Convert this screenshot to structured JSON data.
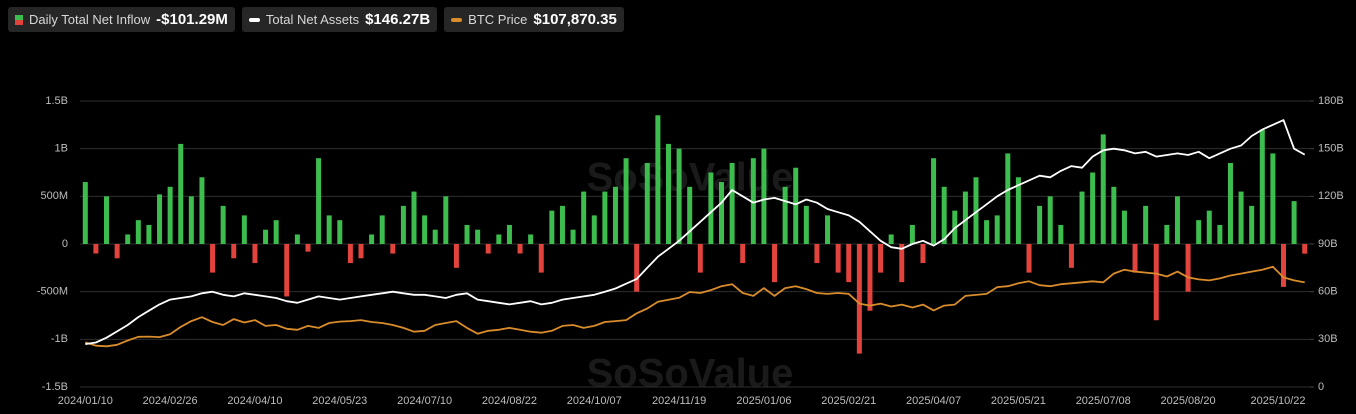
{
  "chart_data": {
    "type": "combo",
    "watermark": "SoSoValue",
    "categories": [
      "2024/01/10",
      null,
      null,
      null,
      null,
      null,
      null,
      null,
      "2024/02/26",
      null,
      null,
      null,
      null,
      null,
      null,
      null,
      "2024/04/10",
      null,
      null,
      null,
      null,
      null,
      null,
      null,
      "2024/05/23",
      null,
      null,
      null,
      null,
      null,
      null,
      null,
      "2024/07/10",
      null,
      null,
      null,
      null,
      null,
      null,
      null,
      "2024/08/22",
      null,
      null,
      null,
      null,
      null,
      null,
      null,
      "2024/10/07",
      null,
      null,
      null,
      null,
      null,
      null,
      null,
      "2024/11/19",
      null,
      null,
      null,
      null,
      null,
      null,
      null,
      "2025/01/06",
      null,
      null,
      null,
      null,
      null,
      null,
      null,
      "2025/02/21",
      null,
      null,
      null,
      null,
      null,
      null,
      null,
      "2025/04/07",
      null,
      null,
      null,
      null,
      null,
      null,
      null,
      "2025/05/21",
      null,
      null,
      null,
      null,
      null,
      null,
      null,
      "2025/07/08",
      null,
      null,
      null,
      null,
      null,
      null,
      null,
      "2025/08/20",
      null,
      null,
      null,
      null,
      null,
      null,
      null,
      null,
      null,
      null,
      "2025/10/22"
    ],
    "series": [
      {
        "name": "Daily Total Net Inflow",
        "type": "bar",
        "axis": "y",
        "color": "#3dbd4d",
        "negative_color": "#e2433d",
        "value_label": "-$101.29M",
        "values": [
          650,
          -100,
          500,
          -150,
          100,
          250,
          200,
          520,
          600,
          1050,
          500,
          700,
          -300,
          400,
          -150,
          300,
          -200,
          150,
          250,
          -550,
          100,
          -80,
          900,
          300,
          250,
          -200,
          -150,
          100,
          300,
          -100,
          400,
          550,
          300,
          150,
          500,
          -250,
          200,
          150,
          -100,
          100,
          200,
          -100,
          100,
          -300,
          350,
          400,
          150,
          550,
          300,
          550,
          600,
          900,
          -500,
          850,
          1350,
          1050,
          1000,
          600,
          -300,
          750,
          650,
          850,
          -200,
          900,
          1000,
          -400,
          600,
          800,
          400,
          -200,
          300,
          -300,
          -400,
          -1150,
          -700,
          -300,
          100,
          -400,
          200,
          -200,
          900,
          600,
          350,
          550,
          700,
          250,
          300,
          950,
          700,
          -300,
          400,
          500,
          200,
          -250,
          550,
          750,
          1150,
          600,
          350,
          -300,
          400,
          -800,
          200,
          500,
          -500,
          250,
          350,
          200,
          850,
          550,
          400,
          1200,
          950,
          -450,
          450,
          -101.29
        ]
      },
      {
        "name": "Total Net Assets",
        "type": "line",
        "axis": "y2",
        "color": "#ffffff",
        "value_label": "$146.27B",
        "values": [
          27,
          28,
          31,
          35,
          39,
          44,
          48,
          52,
          55,
          56,
          57,
          59,
          60,
          58,
          57,
          59,
          58,
          57,
          56,
          54,
          53,
          55,
          57,
          56,
          55,
          56,
          57,
          58,
          59,
          60,
          59,
          58,
          58,
          57,
          56,
          58,
          59,
          55,
          54,
          53,
          52,
          53,
          54,
          52,
          53,
          55,
          56,
          57,
          58,
          60,
          62,
          65,
          68,
          75,
          82,
          87,
          92,
          98,
          104,
          110,
          116,
          124,
          120,
          116,
          118,
          119,
          117,
          115,
          118,
          116,
          112,
          110,
          108,
          104,
          98,
          92,
          88,
          87,
          90,
          92,
          89,
          93,
          100,
          105,
          110,
          115,
          120,
          124,
          127,
          130,
          133,
          132,
          136,
          139,
          138,
          145,
          149,
          150,
          149,
          147,
          148,
          145,
          146,
          147,
          146,
          148,
          144,
          147,
          150,
          152,
          158,
          162,
          165,
          168,
          150,
          146.27
        ]
      },
      {
        "name": "BTC Price",
        "type": "line",
        "axis": "y3",
        "color": "#d98c2b",
        "value_label": "$107,870.35",
        "values": [
          46000,
          42600,
          42000,
          43500,
          48000,
          51800,
          52000,
          51500,
          54500,
          62000,
          68000,
          72000,
          67000,
          64000,
          70000,
          66500,
          69000,
          63000,
          64000,
          60000,
          59000,
          63000,
          61000,
          66000,
          67500,
          68000,
          69000,
          67000,
          66000,
          64000,
          61000,
          57000,
          58000,
          64000,
          66000,
          68000,
          61000,
          55000,
          58000,
          59000,
          61000,
          59000,
          57000,
          56000,
          58000,
          63000,
          64000,
          61000,
          63000,
          67000,
          68000,
          69000,
          76000,
          81000,
          88000,
          90000,
          92000,
          98000,
          97000,
          100000,
          104000,
          106000,
          97000,
          94000,
          102000,
          94000,
          102000,
          104000,
          101000,
          97000,
          96000,
          97000,
          96000,
          86000,
          84000,
          86000,
          83000,
          85000,
          82000,
          85000,
          79000,
          84000,
          85000,
          94000,
          95000,
          96000,
          103000,
          104000,
          107000,
          109000,
          105000,
          104000,
          106000,
          107000,
          108000,
          109000,
          108000,
          117000,
          121000,
          119000,
          118000,
          117000,
          114000,
          119000,
          113000,
          111000,
          110000,
          112000,
          115000,
          117000,
          119000,
          121000,
          124000,
          113000,
          110000,
          107870.35
        ]
      }
    ],
    "ylim": [
      -1500,
      1500
    ],
    "yticks": [
      {
        "value": -1500,
        "label": "-1.5B"
      },
      {
        "value": -1000,
        "label": "-1B"
      },
      {
        "value": -500,
        "label": "-500M"
      },
      0,
      {
        "value": 500,
        "label": "500M"
      },
      {
        "value": 1000,
        "label": "1B"
      },
      {
        "value": 1500,
        "label": "1.5B"
      }
    ],
    "y2lim": [
      0,
      180
    ],
    "y2ticks": [
      0,
      {
        "value": 30,
        "label": "30B"
      },
      {
        "value": 60,
        "label": "60B"
      },
      {
        "value": 90,
        "label": "90B"
      },
      {
        "value": 120,
        "label": "120B"
      },
      {
        "value": 150,
        "label": "150B"
      },
      {
        "value": 180,
        "label": "180B"
      }
    ],
    "y3lim": [
      0,
      295000
    ],
    "grid": true
  }
}
